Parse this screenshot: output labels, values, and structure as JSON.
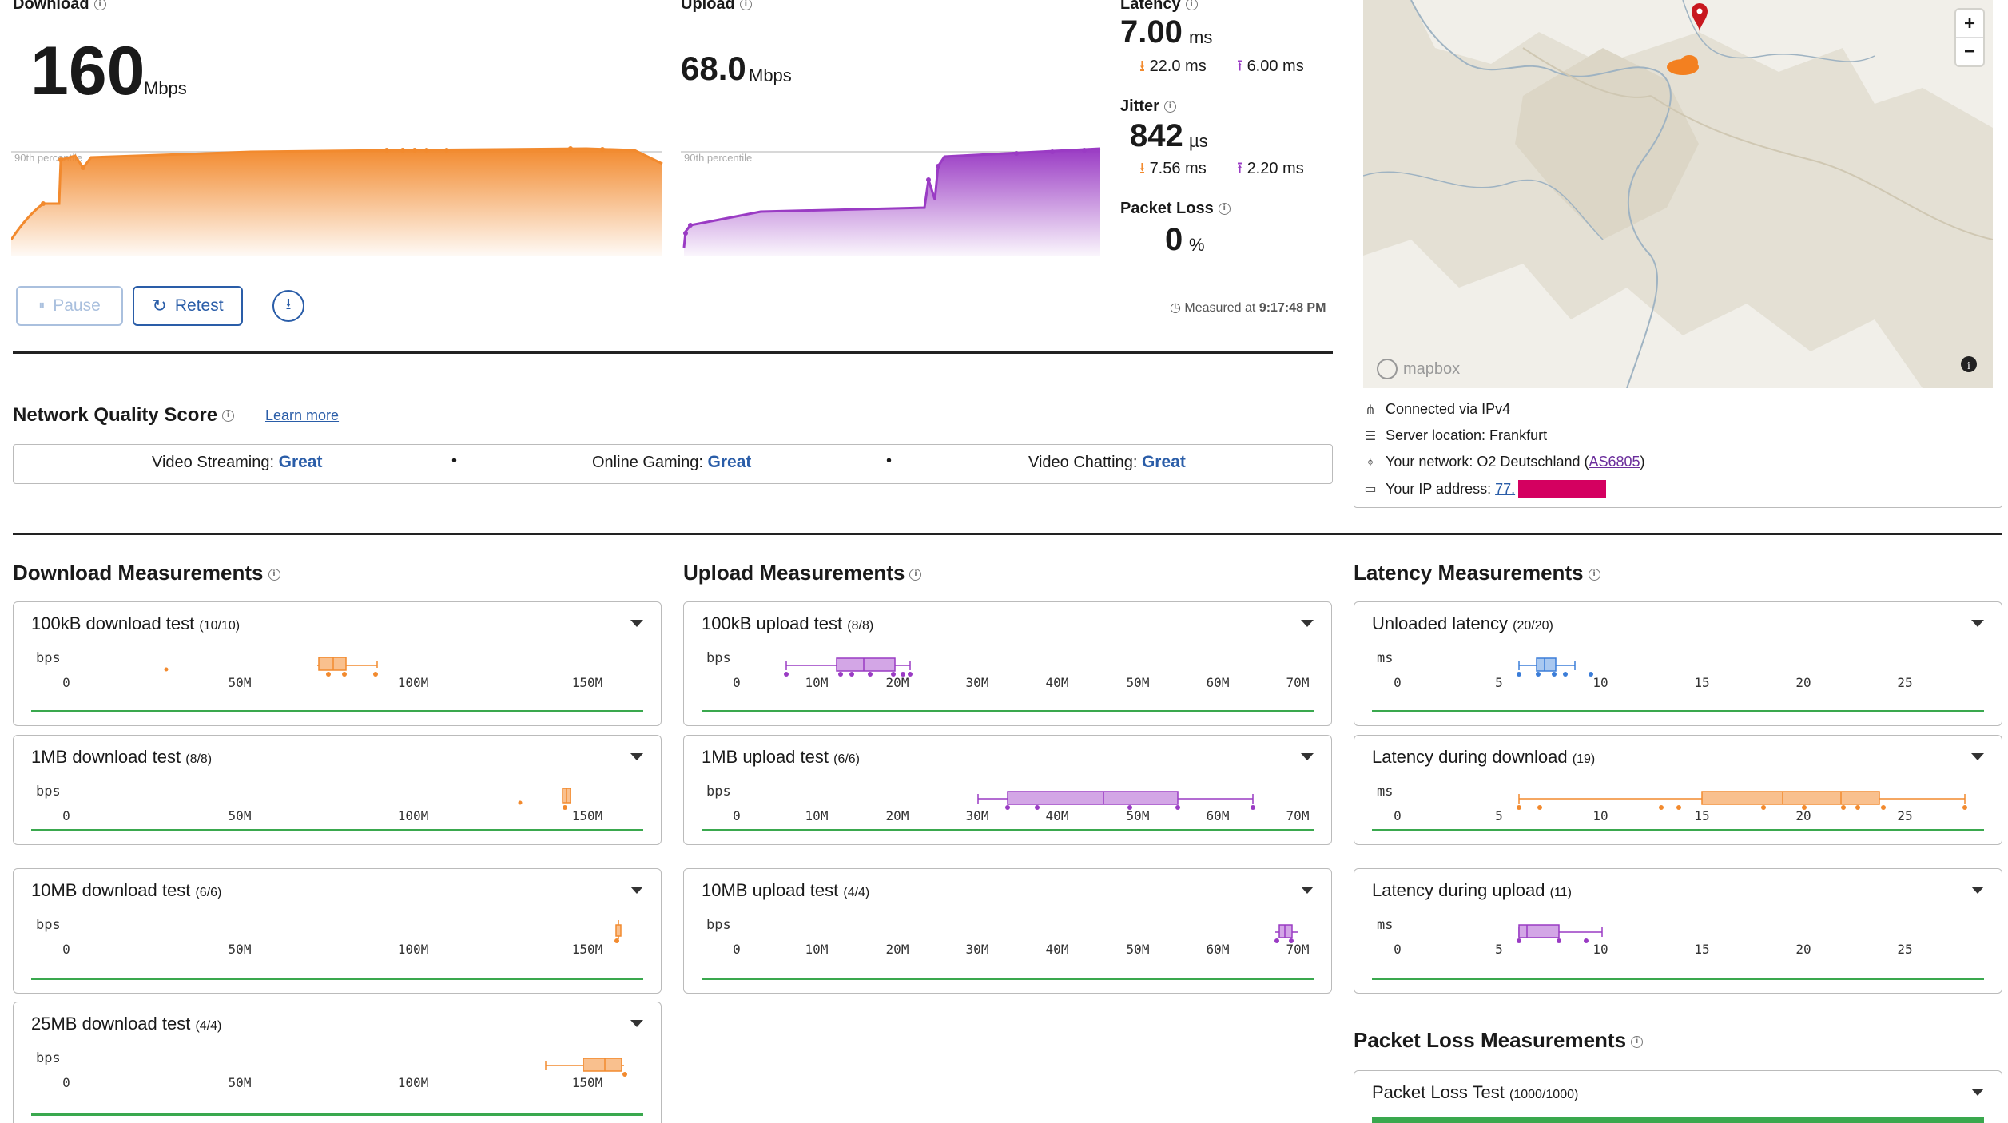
{
  "download": {
    "label": "Download",
    "value": "160",
    "unit": "Mbps",
    "percentile_label": "90th percentile"
  },
  "upload": {
    "label": "Upload",
    "value": "68.0",
    "unit": "Mbps",
    "percentile_label": "90th percentile"
  },
  "latency": {
    "label": "Latency",
    "value": "7.00",
    "unit": "ms",
    "down": "22.0 ms",
    "up": "6.00 ms"
  },
  "jitter": {
    "label": "Jitter",
    "value": "842",
    "unit": "µs",
    "down": "7.56 ms",
    "up": "2.20 ms"
  },
  "packet_loss": {
    "label": "Packet Loss",
    "value": "0",
    "unit": "%"
  },
  "controls": {
    "pause": "Pause",
    "retest": "Retest",
    "measured_prefix": "Measured at",
    "measured_time": "9:17:48 PM"
  },
  "nqs": {
    "title": "Network Quality Score",
    "learn_more": "Learn more",
    "items": [
      {
        "label": "Video Streaming:",
        "value": "Great"
      },
      {
        "label": "Online Gaming:",
        "value": "Great"
      },
      {
        "label": "Video Chatting:",
        "value": "Great"
      }
    ]
  },
  "map": {
    "brand": "mapbox",
    "zoom_in": "+",
    "zoom_out": "−",
    "info": "i"
  },
  "connection": {
    "via": "Connected via IPv4",
    "server": "Server location: Frankfurt",
    "network_prefix": "Your network: O2 Deutschland (",
    "network_asn": "AS6805",
    "network_suffix": ")",
    "ip_prefix": "Your IP address: ",
    "ip_value": "77."
  },
  "sections": {
    "download": "Download Measurements",
    "upload": "Upload Measurements",
    "latency": "Latency Measurements",
    "packet_loss": "Packet Loss Measurements"
  },
  "cards": {
    "dl100k": {
      "title": "100kB download test",
      "count": "(10/10)",
      "unit": "bps"
    },
    "dl1m": {
      "title": "1MB download test",
      "count": "(8/8)",
      "unit": "bps"
    },
    "dl10m": {
      "title": "10MB download test",
      "count": "(6/6)",
      "unit": "bps"
    },
    "dl25m": {
      "title": "25MB download test",
      "count": "(4/4)",
      "unit": "bps"
    },
    "ul100k": {
      "title": "100kB upload test",
      "count": "(8/8)",
      "unit": "bps"
    },
    "ul1m": {
      "title": "1MB upload test",
      "count": "(6/6)",
      "unit": "bps"
    },
    "ul10m": {
      "title": "10MB upload test",
      "count": "(4/4)",
      "unit": "bps"
    },
    "lat_unloaded": {
      "title": "Unloaded latency",
      "count": "(20/20)",
      "unit": "ms"
    },
    "lat_dl": {
      "title": "Latency during download",
      "count": "(19)",
      "unit": "ms"
    },
    "lat_ul": {
      "title": "Latency during upload",
      "count": "(11)",
      "unit": "ms"
    },
    "pl": {
      "title": "Packet Loss Test",
      "count": "(1000/1000)"
    }
  },
  "axes": {
    "dl": [
      "0",
      "50M",
      "100M",
      "150M"
    ],
    "ul": [
      "0",
      "10M",
      "20M",
      "30M",
      "40M",
      "50M",
      "60M",
      "70M"
    ],
    "lat": [
      "0",
      "5",
      "10",
      "15",
      "20",
      "25"
    ]
  },
  "colors": {
    "download": "#f28a2e",
    "upload": "#9a3bc4",
    "latency_unloaded": "#3b7dd8",
    "accent": "#2a5da8",
    "good": "#3aa84e"
  }
}
